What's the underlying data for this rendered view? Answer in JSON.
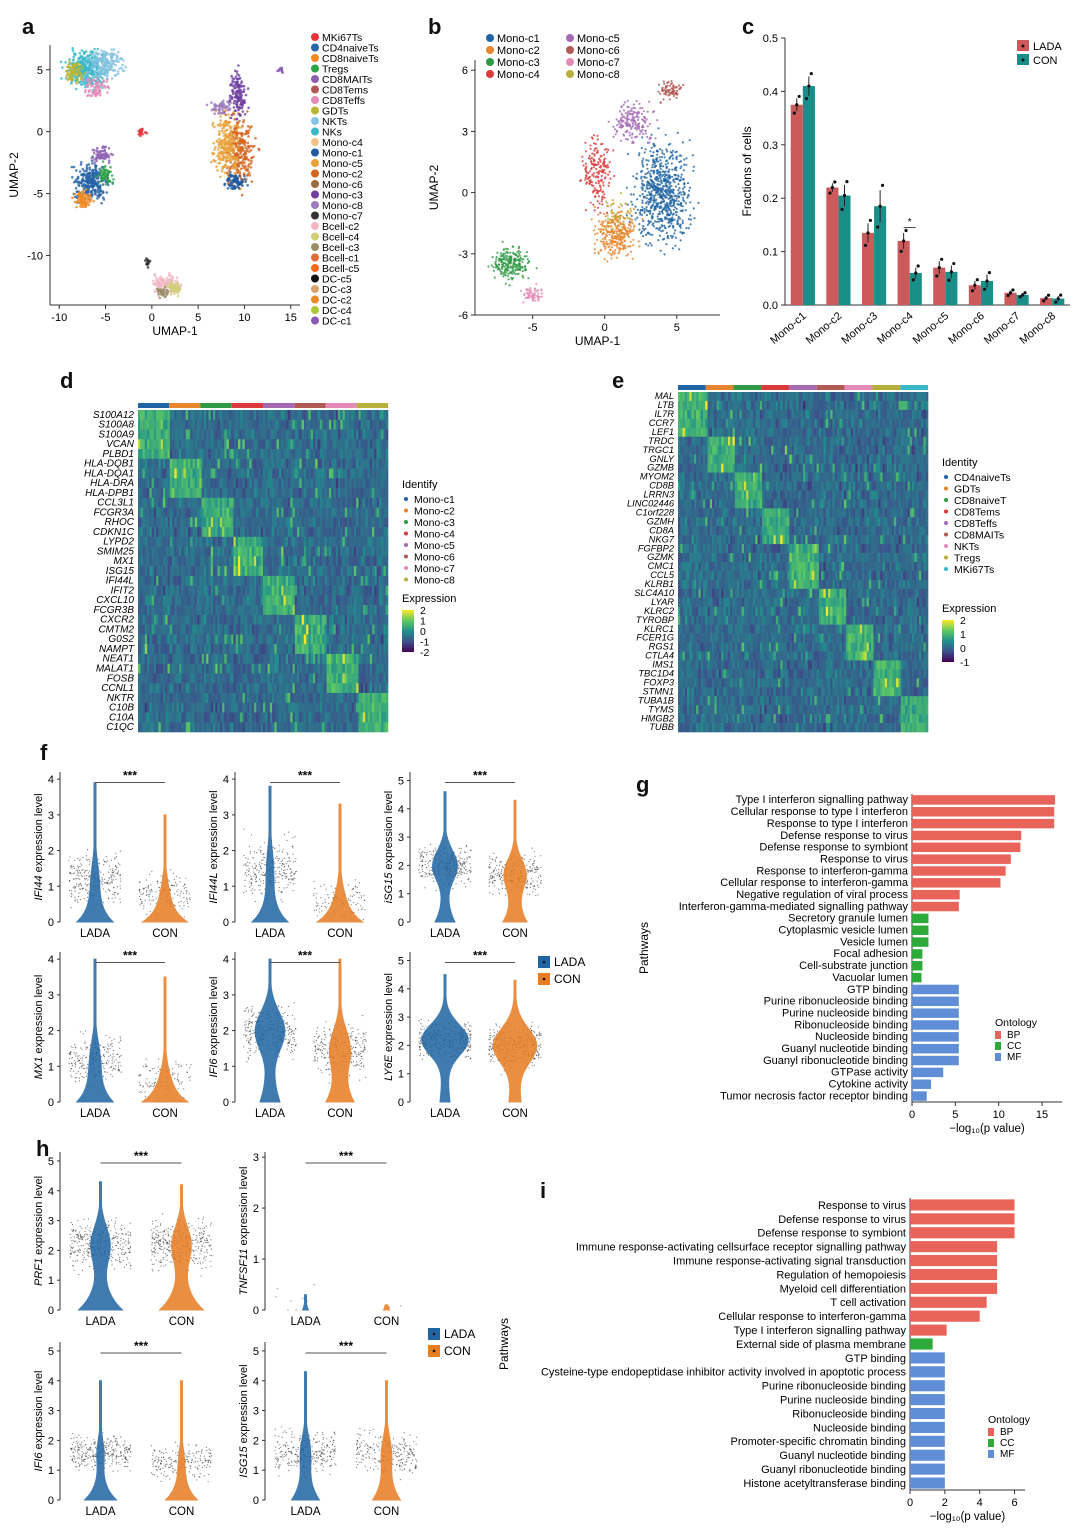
{
  "panel_labels": [
    "a",
    "b",
    "c",
    "d",
    "e",
    "f",
    "g",
    "h",
    "i"
  ],
  "colors": {
    "LADA": "#cd5a5a",
    "CON": "#1a8f8a",
    "violin_LADA": "#1f64a3",
    "violin_CON": "#e77c22",
    "BP": "#e8635a",
    "CC": "#2eaa3a",
    "MF": "#5f8ed6"
  },
  "panel_a": {
    "xlabel": "UMAP-1",
    "ylabel": "UMAP-2",
    "xticks": [
      "-10",
      "-5",
      "0",
      "5",
      "10",
      "15"
    ],
    "yticks": [
      "5",
      "0",
      "-5",
      "-10"
    ],
    "legend": [
      {
        "label": "MKi67Ts",
        "color": "#e8333a"
      },
      {
        "label": "CD4naiveTs",
        "color": "#2563a6"
      },
      {
        "label": "CD8naiveTs",
        "color": "#ef8a23"
      },
      {
        "label": "Tregs",
        "color": "#2fa34a"
      },
      {
        "label": "CD8MAITs",
        "color": "#8b5fb0"
      },
      {
        "label": "CD8Tems",
        "color": "#b05a55"
      },
      {
        "label": "CD8Teffs",
        "color": "#e48ab8"
      },
      {
        "label": "GDTs",
        "color": "#b9b532"
      },
      {
        "label": "NKTs",
        "color": "#86c2e1"
      },
      {
        "label": "NKs",
        "color": "#39b8c8"
      },
      {
        "label": "Mono-c4",
        "color": "#f2c38a"
      },
      {
        "label": "Mono-c1",
        "color": "#1f5aa0"
      },
      {
        "label": "Mono-c5",
        "color": "#e9a23a"
      },
      {
        "label": "Mono-c2",
        "color": "#d4651f"
      },
      {
        "label": "Mono-c6",
        "color": "#9a6a40"
      },
      {
        "label": "Mono-c3",
        "color": "#6f3fa0"
      },
      {
        "label": "Mono-c8",
        "color": "#9d7bbf"
      },
      {
        "label": "Mono-c7",
        "color": "#333333"
      },
      {
        "label": "Bcell-c2",
        "color": "#f0b8c4"
      },
      {
        "label": "Bcell-c4",
        "color": "#cfcf7a"
      },
      {
        "label": "Bcell-c3",
        "color": "#9a8d6a"
      },
      {
        "label": "Bcell-c1",
        "color": "#e06a3a"
      },
      {
        "label": "Bcell-c5",
        "color": "#ef6a1a"
      },
      {
        "label": "DC-c5",
        "color": "#111111"
      },
      {
        "label": "DC-c3",
        "color": "#d8a36a"
      },
      {
        "label": "DC-c2",
        "color": "#e88a2a"
      },
      {
        "label": "DC-c4",
        "color": "#a8c838"
      },
      {
        "label": "DC-c1",
        "color": "#8a58b8"
      }
    ]
  },
  "panel_b": {
    "xlabel": "UMAP-1",
    "ylabel": "UMAP-2",
    "xticks": [
      "-5",
      "0",
      "5"
    ],
    "yticks": [
      "6",
      "3",
      "0",
      "-3",
      "-6"
    ],
    "legend": [
      {
        "label": "Mono-c1",
        "color": "#1f64a3"
      },
      {
        "label": "Mono-c5",
        "color": "#a46bb4"
      },
      {
        "label": "Mono-c2",
        "color": "#e7852c"
      },
      {
        "label": "Mono-c6",
        "color": "#b05a55"
      },
      {
        "label": "Mono-c3",
        "color": "#2e9a45"
      },
      {
        "label": "Mono-c7",
        "color": "#e48ab8"
      },
      {
        "label": "Mono-c4",
        "color": "#dc3a3a"
      },
      {
        "label": "Mono-c8",
        "color": "#b8b03a"
      }
    ]
  },
  "chart_data": [
    {
      "type": "bar",
      "panel": "c",
      "categories": [
        "Mono-c1",
        "Mono-c2",
        "Mono-c3",
        "Mono-c4",
        "Mono-c5",
        "Mono-c6",
        "Mono-c7",
        "Mono-c8"
      ],
      "series": [
        {
          "name": "LADA",
          "values": [
            0.375,
            0.22,
            0.135,
            0.12,
            0.07,
            0.037,
            0.023,
            0.013
          ]
        },
        {
          "name": "CON",
          "values": [
            0.41,
            0.205,
            0.185,
            0.06,
            0.062,
            0.045,
            0.019,
            0.012
          ]
        }
      ],
      "errors": {
        "LADA": [
          0.012,
          0.008,
          0.018,
          0.015,
          0.012,
          0.008,
          0.004,
          0.004
        ],
        "CON": [
          0.018,
          0.02,
          0.03,
          0.01,
          0.012,
          0.012,
          0.003,
          0.005
        ]
      },
      "ylabel": "Fractions of cells",
      "yticks": [
        "0.0",
        "0.1",
        "0.2",
        "0.3",
        "0.4",
        "0.5"
      ],
      "ylim": [
        0,
        0.5
      ],
      "annotation": "*",
      "legend_position": "top-right"
    },
    {
      "type": "heatmap",
      "panel": "d",
      "genes": [
        "S100A12",
        "S100A8",
        "S100A9",
        "VCAN",
        "PLBD1",
        "HLA-DQB1",
        "HLA-DQA1",
        "HLA-DRA",
        "HLA-DPB1",
        "CCL3L1",
        "FCGR3A",
        "RHOC",
        "CDKN1C",
        "LYPD2",
        "SMIM25",
        "MX1",
        "ISG15",
        "IFI44L",
        "IFIT2",
        "CXCL10",
        "FCGR3B",
        "CXCR2",
        "CMTM2",
        "G0S2",
        "NAMPT",
        "NEAT1",
        "MALAT1",
        "FOSB",
        "CCNL1",
        "NKTR",
        "C10B",
        "C10A",
        "C1QC"
      ],
      "legend_title": "Identify",
      "groups": [
        "Mono-c1",
        "Mono-c2",
        "Mono-c3",
        "Mono-c4",
        "Mono-c5",
        "Mono-c6",
        "Mono-c7",
        "Mono-c8"
      ],
      "group_colors": [
        "#1f64a3",
        "#e7852c",
        "#2e9a45",
        "#dc3a3a",
        "#a46bb4",
        "#b05a55",
        "#e48ab8",
        "#b8b03a"
      ],
      "colorbar_title": "Expression",
      "colorbar_ticks": [
        "2",
        "1",
        "0",
        "-1",
        "-2"
      ]
    },
    {
      "type": "heatmap",
      "panel": "e",
      "genes": [
        "MAL",
        "LTB",
        "IL7R",
        "CCR7",
        "LEF1",
        "TRDC",
        "TRGC1",
        "GNLY",
        "GZMB",
        "MYOM2",
        "CD8B",
        "LRRN3",
        "LINC02446",
        "C1orf228",
        "GZMH",
        "CD8A",
        "NKG7",
        "FGFBP2",
        "GZMK",
        "CMC1",
        "CCL5",
        "KLRB1",
        "SLC4A10",
        "LYAR",
        "KLRC2",
        "TYROBP",
        "KLRC1",
        "FCER1G",
        "RGS1",
        "CTLA4",
        "IMS1",
        "TBC1D4",
        "FOXP3",
        "STMN1",
        "TUBA1B",
        "TYMS",
        "HMGB2",
        "TUBB"
      ],
      "legend_title": "Identity",
      "groups": [
        "CD4naiveTs",
        "GDTs",
        "CD8naiveT",
        "CD8Tems",
        "CD8Teffs",
        "CD8MAITs",
        "NKTs",
        "Tregs",
        "MKi67Ts"
      ],
      "group_colors": [
        "#1f64a3",
        "#e7852c",
        "#2e9a45",
        "#dc3a3a",
        "#a46bb4",
        "#b05a55",
        "#e48ab8",
        "#b8b03a",
        "#39b8c8"
      ],
      "colorbar_title": "Expression",
      "colorbar_ticks": [
        "2",
        "1",
        "0",
        "-1"
      ]
    },
    {
      "type": "violin",
      "panel": "f",
      "plots": [
        {
          "gene": "IFI44",
          "ylabel_suffix": " expression level",
          "yticks": [
            "0",
            "1",
            "2",
            "3",
            "4"
          ],
          "ymax": 4.2,
          "sig": "***"
        },
        {
          "gene": "IFI44L",
          "ylabel_suffix": " expression level",
          "yticks": [
            "0",
            "1",
            "2",
            "3",
            "4"
          ],
          "ymax": 4.2,
          "sig": "***"
        },
        {
          "gene": "iSG15",
          "ylabel_suffix": " expression level",
          "yticks": [
            "0",
            "1",
            "2",
            "3",
            "4",
            "5"
          ],
          "ymax": 5.3,
          "sig": "***"
        },
        {
          "gene": "MX1",
          "ylabel_suffix": " expression level",
          "yticks": [
            "0",
            "1",
            "2",
            "3",
            "4"
          ],
          "ymax": 4.2,
          "sig": "***"
        },
        {
          "gene": "IFI6",
          "ylabel_suffix": " expression level",
          "yticks": [
            "0",
            "1",
            "2",
            "3",
            "4"
          ],
          "ymax": 4.2,
          "sig": "***"
        },
        {
          "gene": "LY6E",
          "ylabel_suffix": " expression level",
          "yticks": [
            "0",
            "1",
            "2",
            "3",
            "4",
            "5"
          ],
          "ymax": 5.3,
          "sig": "***"
        }
      ],
      "groups": [
        "LADA",
        "CON"
      ],
      "legend": [
        "LADA",
        "CON"
      ]
    },
    {
      "type": "bar",
      "panel": "g",
      "orientation": "horizontal",
      "categories": [
        "Type I interferon signalling pathway",
        "Cellular response to type I interferon",
        "Response to type I interferon",
        "Defense response to virus",
        "Defense response to symbiont",
        "Response to virus",
        "Response to interferon-gamma",
        "Cellular response to interferon-gamma",
        "Negative regulation of viral process",
        "Interferon-gamma-mediated signalling pathway",
        "Secretory granule lumen",
        "Cytoplasmic vesicle lumen",
        "Vesicle lumen",
        "Focal adhesion",
        "Cell-substrate junction",
        "Vacuolar lumen",
        "GTP binding",
        "Purine ribonucleoside binding",
        "Purine nucleoside binding",
        "Ribonucleoside binding",
        "Nucleoside binding",
        "Guanyl nucleotide binding",
        "Guanyl ribonucleotide binding",
        "GTPase activity",
        "Cytokine activity",
        "Tumor necrosis factor receptor binding"
      ],
      "values": [
        16.5,
        16.4,
        16.4,
        12.6,
        12.5,
        11.4,
        10.8,
        10.2,
        5.5,
        5.4,
        1.9,
        1.9,
        1.9,
        1.2,
        1.2,
        1.1,
        5.4,
        5.4,
        5.4,
        5.4,
        5.4,
        5.4,
        5.4,
        3.6,
        2.2,
        1.7
      ],
      "ontology": [
        "BP",
        "BP",
        "BP",
        "BP",
        "BP",
        "BP",
        "BP",
        "BP",
        "BP",
        "BP",
        "CC",
        "CC",
        "CC",
        "CC",
        "CC",
        "CC",
        "MF",
        "MF",
        "MF",
        "MF",
        "MF",
        "MF",
        "MF",
        "MF",
        "MF",
        "MF"
      ],
      "xlabel": "−log₁₀(p value)",
      "ylabel": "Pathways",
      "xticks": [
        "0",
        "5",
        "10",
        "15"
      ],
      "xlim": [
        0,
        17.3
      ],
      "legend_title": "Ontology",
      "legend": [
        "BP",
        "CC",
        "MF"
      ]
    },
    {
      "type": "violin",
      "panel": "h",
      "plots": [
        {
          "gene": "PRF1",
          "ylabel_suffix": " expression level",
          "yticks": [
            "0",
            "1",
            "2",
            "3",
            "4",
            "5"
          ],
          "ymax": 5.3,
          "sig": "***"
        },
        {
          "gene": "TNFSF11",
          "ylabel_suffix": " expression level",
          "yticks": [
            "0",
            "1",
            "2",
            "3"
          ],
          "ymax": 3.1,
          "sig": "***"
        },
        {
          "gene": "IFI6",
          "ylabel_suffix": " expression level",
          "yticks": [
            "0",
            "1",
            "2",
            "3",
            "4",
            "5"
          ],
          "ymax": 5.3,
          "sig": "***"
        },
        {
          "gene": "ISG15",
          "ylabel_suffix": " expression level",
          "yticks": [
            "0",
            "1",
            "2",
            "3",
            "4",
            "5"
          ],
          "ymax": 5.3,
          "sig": "***"
        }
      ],
      "groups": [
        "LADA",
        "CON"
      ],
      "legend": [
        "LADA",
        "CON"
      ]
    },
    {
      "type": "bar",
      "panel": "i",
      "orientation": "horizontal",
      "categories": [
        "Response to virus",
        "Defense response to virus",
        "Defense response to symbiont",
        "Immune response-activating cellsurface receptor signalling pathway",
        "Immune response-activating signal transduction",
        "Regulation of hemopoiesis",
        "Myeloid cell differentiation",
        "T cell activation",
        "Cellular response to interferon-gamma",
        "Type I interferon signalling pathway",
        "External side of plasma membrane",
        "GTP binding",
        "Cysteine-type endopeptidase inhibitor activity involved in apoptotic process",
        "Purine ribonucleoside binding",
        "Purine nucleoside binding",
        "Ribonucleoside binding",
        "Nucleoside binding",
        "Promoter-specific chromatin binding",
        "Guanyl nucleotide binding",
        "Guanyl ribonucleotide binding",
        "Histone acetyltransferase binding"
      ],
      "values": [
        6.0,
        6.0,
        6.0,
        5.0,
        5.0,
        5.0,
        5.0,
        4.4,
        4.0,
        2.1,
        1.3,
        2.0,
        2.0,
        2.0,
        2.0,
        2.0,
        2.0,
        2.0,
        2.0,
        2.0,
        2.0
      ],
      "ontology": [
        "BP",
        "BP",
        "BP",
        "BP",
        "BP",
        "BP",
        "BP",
        "BP",
        "BP",
        "BP",
        "CC",
        "MF",
        "MF",
        "MF",
        "MF",
        "MF",
        "MF",
        "MF",
        "MF",
        "MF",
        "MF"
      ],
      "xlabel": "−log₁₀(p value)",
      "ylabel": "Pathways",
      "xticks": [
        "0",
        "2",
        "4",
        "6"
      ],
      "xlim": [
        0,
        6.6
      ],
      "legend_title": "Ontology",
      "legend": [
        "BP",
        "CC",
        "MF"
      ]
    }
  ]
}
